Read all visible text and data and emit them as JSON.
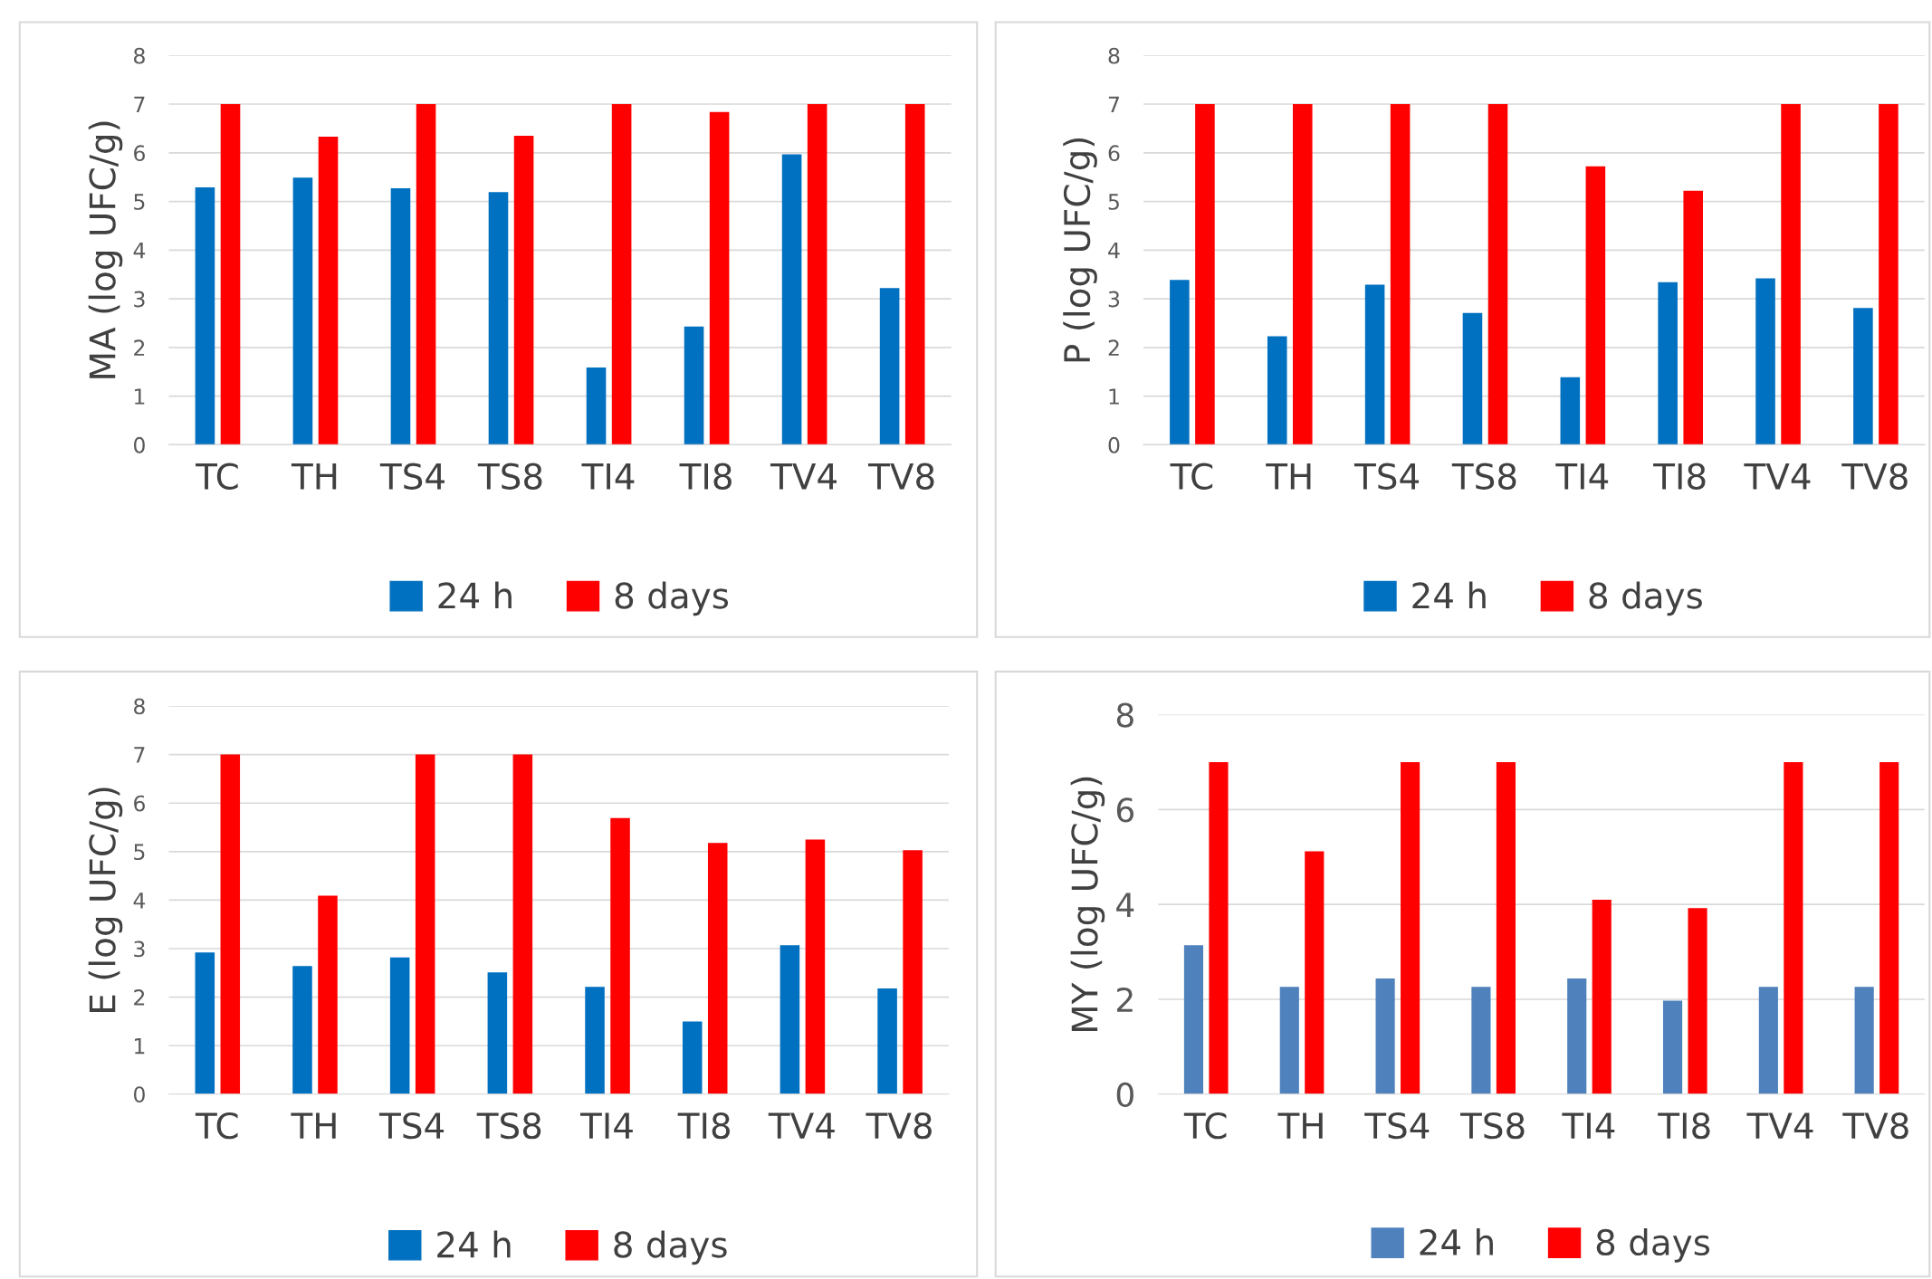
{
  "chart_data": [
    {
      "type": "bar",
      "ylabel": "MA (log UFC/g)",
      "categories": [
        "TC",
        "TH",
        "TS4",
        "TS8",
        "TI4",
        "TI8",
        "TV4",
        "TV8"
      ],
      "ylim": [
        0,
        8
      ],
      "yticks": [
        0,
        1,
        2,
        3,
        4,
        5,
        6,
        7,
        8
      ],
      "grid": "y",
      "legend": "bottom",
      "series": [
        {
          "name": "24 h",
          "color": "#0070c0",
          "values": [
            5.29,
            5.49,
            5.27,
            5.19,
            1.59,
            2.43,
            5.97,
            3.22
          ]
        },
        {
          "name": "8 days",
          "color": "#ff0000",
          "values": [
            7,
            6.33,
            7,
            6.35,
            7,
            6.84,
            7,
            7
          ]
        }
      ]
    },
    {
      "type": "bar",
      "ylabel": "P (log UFC/g)",
      "categories": [
        "TC",
        "TH",
        "TS4",
        "TS8",
        "TI4",
        "TI8",
        "TV4",
        "TV8"
      ],
      "ylim": [
        0,
        8
      ],
      "yticks": [
        0,
        1,
        2,
        3,
        4,
        5,
        6,
        7,
        8
      ],
      "grid": "y",
      "legend": "bottom",
      "series": [
        {
          "name": "24 h",
          "color": "#0070c0",
          "values": [
            3.39,
            2.23,
            3.29,
            2.71,
            1.39,
            3.34,
            3.42,
            2.81
          ]
        },
        {
          "name": "8 days",
          "color": "#ff0000",
          "values": [
            7,
            7,
            7,
            7,
            5.72,
            5.22,
            7,
            7
          ]
        }
      ]
    },
    {
      "type": "bar",
      "ylabel": "E (log UFC/g)",
      "categories": [
        "TC",
        "TH",
        "TS4",
        "TS8",
        "TI4",
        "TI8",
        "TV4",
        "TV8"
      ],
      "ylim": [
        0,
        8
      ],
      "yticks": [
        0,
        1,
        2,
        3,
        4,
        5,
        6,
        7,
        8
      ],
      "grid": "y",
      "legend": "bottom",
      "series": [
        {
          "name": "24 h",
          "color": "#0070c0",
          "values": [
            2.92,
            2.64,
            2.82,
            2.51,
            2.21,
            1.5,
            3.07,
            2.18
          ]
        },
        {
          "name": "8 days",
          "color": "#ff0000",
          "values": [
            7,
            4.09,
            7,
            7,
            5.69,
            5.18,
            5.25,
            5.03
          ]
        }
      ]
    },
    {
      "type": "bar",
      "ylabel": "MY (log UFC/g)",
      "categories": [
        "TC",
        "TH",
        "TS4",
        "TS8",
        "TI4",
        "TI8",
        "TV4",
        "TV8"
      ],
      "ylim": [
        0,
        8
      ],
      "yticks": [
        0,
        2,
        4,
        6,
        8
      ],
      "grid": "y",
      "legend": "bottom",
      "series": [
        {
          "name": "24 h",
          "color": "#4f81bd",
          "values": [
            3.14,
            2.26,
            2.44,
            2.26,
            2.44,
            1.97,
            2.26,
            2.26
          ]
        },
        {
          "name": "8 days",
          "color": "#ff0000",
          "values": [
            7,
            5.12,
            7,
            7,
            4.1,
            3.92,
            7,
            7
          ]
        }
      ]
    }
  ]
}
